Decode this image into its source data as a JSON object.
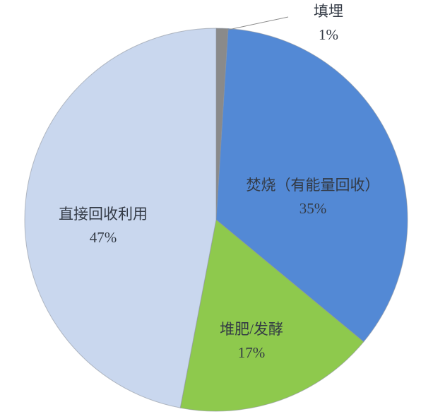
{
  "chart_data": {
    "type": "pie",
    "title": "",
    "unit": "%",
    "direction": "clockwise",
    "start_angle_deg": 0,
    "legend": "none",
    "background": "#FFFFFF",
    "slice_border_color": "#8E959E",
    "label_text_color": "#333A45",
    "slices": [
      {
        "label": "填埋",
        "value": 1,
        "pct_label": "1%",
        "color": "#8A8A8A",
        "label_placement": "outside-with-leader-line"
      },
      {
        "label": "焚烧（有能量回收）",
        "value": 35,
        "pct_label": "35%",
        "color": "#5389D5",
        "label_placement": "inside"
      },
      {
        "label": "堆肥/发酵",
        "value": 17,
        "pct_label": "17%",
        "color": "#8EC94D",
        "label_placement": "inside"
      },
      {
        "label": "直接回收利用",
        "value": 47,
        "pct_label": "47%",
        "color": "#C9D7EE",
        "label_placement": "inside"
      }
    ]
  }
}
